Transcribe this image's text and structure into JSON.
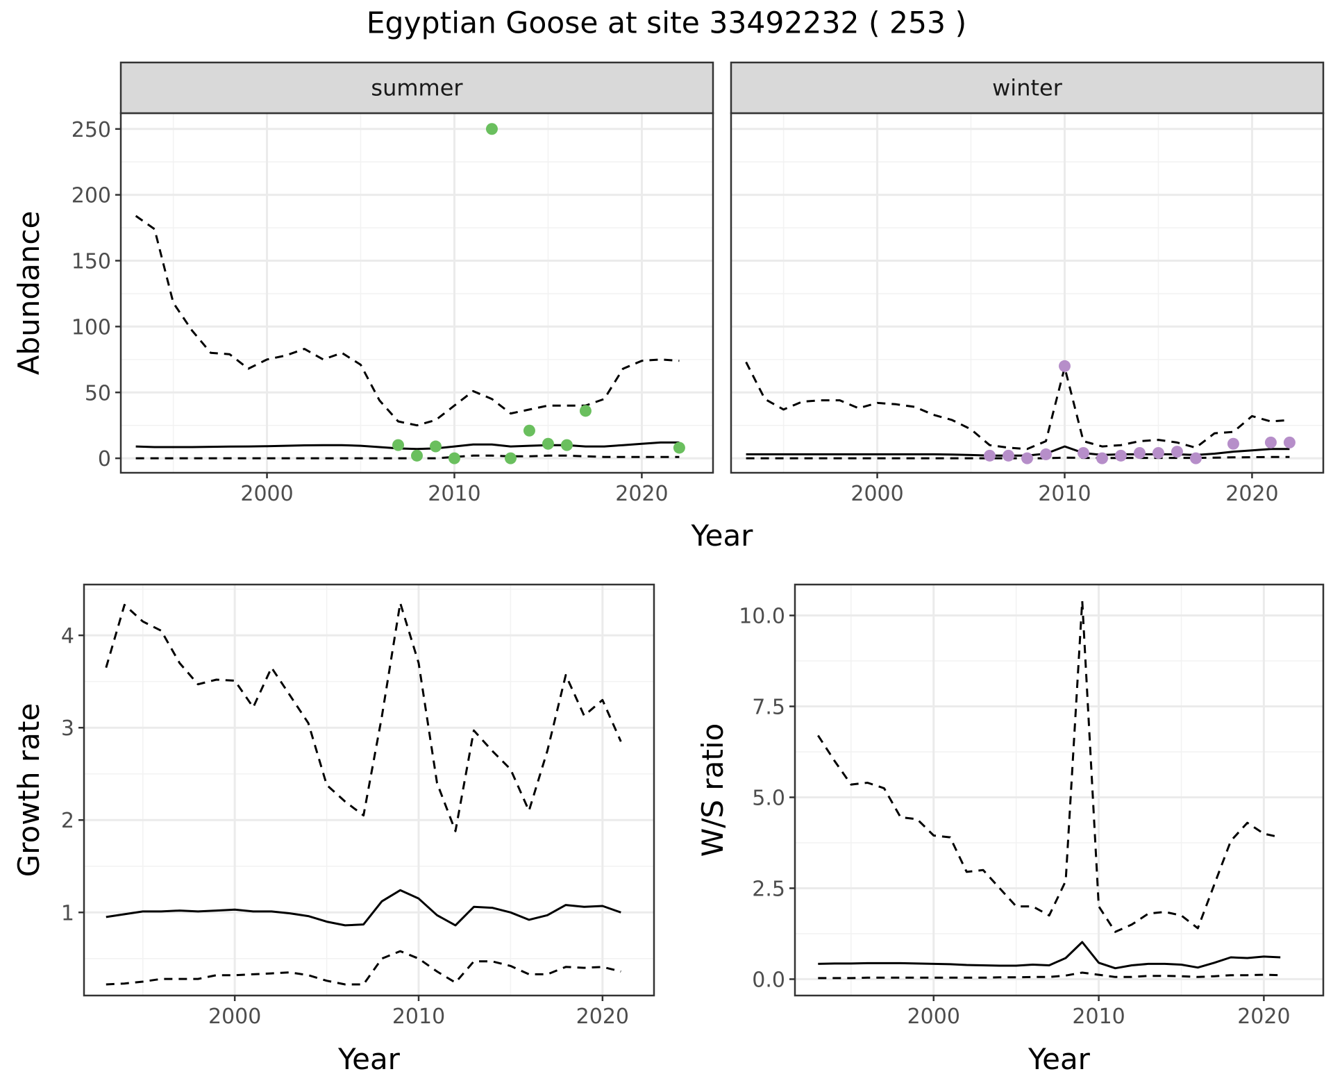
{
  "title": "Egyptian Goose at site 33492232 ( 253 )",
  "colors": {
    "summer_points": "#6abf5e",
    "winter_points": "#b68ec9",
    "strip_bg": "#d9d9d9",
    "grid": "#ebebeb",
    "line": "#000000"
  },
  "chart_data": [
    {
      "type": "line",
      "panel": "summer",
      "ylabel": "Abundance",
      "xlim": [
        1992.2,
        2023.8
      ],
      "ylim": [
        -11,
        262
      ],
      "xticks": [
        2000,
        2010,
        2020
      ],
      "yticks": [
        0,
        50,
        100,
        150,
        200,
        250
      ],
      "grid": true,
      "x": [
        1993,
        1994,
        1995,
        1996,
        1997,
        1998,
        1999,
        2000,
        2001,
        2002,
        2003,
        2004,
        2005,
        2006,
        2007,
        2008,
        2009,
        2010,
        2011,
        2012,
        2013,
        2014,
        2015,
        2016,
        2017,
        2018,
        2019,
        2020,
        2021,
        2022
      ],
      "series": [
        {
          "style": "dashed",
          "values": [
            184,
            174,
            118,
            97,
            80,
            79,
            68,
            75,
            78,
            83,
            75,
            80,
            71,
            44,
            28,
            25,
            29,
            40,
            51,
            45,
            34,
            37,
            40,
            40,
            40,
            45,
            68,
            74,
            75,
            74
          ]
        },
        {
          "style": "solid",
          "values": [
            9,
            8.5,
            8.5,
            8.5,
            8.7,
            8.9,
            9,
            9.2,
            9.5,
            9.8,
            10,
            10,
            9.5,
            8.5,
            7.5,
            7,
            7.5,
            9,
            10.5,
            10.5,
            9,
            9.5,
            10,
            10,
            9,
            9,
            10,
            11,
            12,
            12
          ]
        },
        {
          "style": "dashed",
          "values": [
            0,
            0,
            0,
            0,
            0,
            0,
            0,
            0,
            0,
            0,
            0,
            0,
            0,
            0,
            0,
            0,
            0,
            1,
            2,
            2,
            1.5,
            1.5,
            2,
            2,
            1.5,
            1,
            1,
            1,
            1,
            1
          ]
        }
      ],
      "points": {
        "x": [
          2007,
          2008,
          2009,
          2010,
          2012,
          2013,
          2014,
          2015,
          2016,
          2017,
          2022
        ],
        "y": [
          10,
          2,
          9,
          0,
          250,
          0,
          21,
          11,
          10,
          36,
          8
        ]
      }
    },
    {
      "type": "line",
      "panel": "winter",
      "ylabel": "",
      "xlim": [
        1992.2,
        2023.8
      ],
      "ylim": [
        -11,
        262
      ],
      "xticks": [
        2000,
        2010,
        2020
      ],
      "yticks": [],
      "grid": true,
      "x": [
        1993,
        1994,
        1995,
        1996,
        1997,
        1998,
        1999,
        2000,
        2001,
        2002,
        2003,
        2004,
        2005,
        2006,
        2007,
        2008,
        2009,
        2010,
        2011,
        2012,
        2013,
        2014,
        2015,
        2016,
        2017,
        2018,
        2019,
        2020,
        2021,
        2022
      ],
      "series": [
        {
          "style": "dashed",
          "values": [
            73,
            45,
            37,
            43,
            44,
            44,
            38,
            42,
            41,
            39,
            33,
            29,
            22,
            10,
            8,
            7,
            13,
            69,
            13,
            9,
            10,
            13,
            14,
            12,
            8,
            19,
            20,
            32,
            28,
            29
          ]
        },
        {
          "style": "solid",
          "values": [
            3,
            3,
            3,
            3,
            3,
            3,
            3,
            3,
            3,
            3,
            3,
            2.8,
            2.5,
            2,
            2,
            2,
            3.5,
            9,
            4,
            2.5,
            3,
            3,
            3,
            3,
            2.5,
            3.5,
            5,
            6,
            7,
            7
          ]
        },
        {
          "style": "dashed",
          "values": [
            0,
            0,
            0,
            0,
            0,
            0,
            0,
            0,
            0,
            0,
            0,
            0,
            0,
            0,
            0,
            0,
            0,
            0.5,
            0.3,
            0.2,
            0.2,
            0.3,
            0.3,
            0.3,
            0.2,
            0.5,
            0.7,
            0.8,
            1,
            1
          ]
        }
      ],
      "points": {
        "x": [
          2006,
          2007,
          2008,
          2009,
          2010,
          2011,
          2012,
          2013,
          2014,
          2015,
          2016,
          2017,
          2019,
          2021,
          2022
        ],
        "y": [
          2,
          2,
          0,
          3,
          70,
          4,
          0,
          2,
          4,
          4,
          5,
          0,
          11,
          12,
          12
        ]
      }
    },
    {
      "type": "line",
      "panel": "growth",
      "ylabel": "Growth rate",
      "xlabel": "Year",
      "xlim": [
        1991.8,
        2022.8
      ],
      "ylim": [
        0.1,
        4.55
      ],
      "xticks": [
        2000,
        2010,
        2020
      ],
      "yticks": [
        1,
        2,
        3,
        4
      ],
      "grid": true,
      "x": [
        1993,
        1994,
        1995,
        1996,
        1997,
        1998,
        1999,
        2000,
        2001,
        2002,
        2003,
        2004,
        2005,
        2006,
        2007,
        2008,
        2009,
        2010,
        2011,
        2012,
        2013,
        2014,
        2015,
        2016,
        2017,
        2018,
        2019,
        2020,
        2021
      ],
      "series": [
        {
          "style": "dashed",
          "values": [
            3.65,
            4.33,
            4.15,
            4.05,
            3.7,
            3.47,
            3.52,
            3.51,
            3.22,
            3.65,
            3.35,
            3.05,
            2.38,
            2.2,
            2.05,
            3.12,
            4.35,
            3.7,
            2.4,
            1.88,
            2.97,
            2.75,
            2.55,
            2.1,
            2.75,
            3.57,
            3.13,
            3.3,
            2.85
          ]
        },
        {
          "style": "solid",
          "values": [
            0.95,
            0.98,
            1.01,
            1.01,
            1.02,
            1.01,
            1.02,
            1.03,
            1.01,
            1.01,
            0.99,
            0.96,
            0.9,
            0.86,
            0.87,
            1.12,
            1.24,
            1.15,
            0.97,
            0.86,
            1.06,
            1.05,
            1.0,
            0.92,
            0.97,
            1.08,
            1.06,
            1.07,
            1.0
          ]
        },
        {
          "style": "dashed",
          "values": [
            0.22,
            0.23,
            0.25,
            0.28,
            0.28,
            0.28,
            0.32,
            0.32,
            0.33,
            0.34,
            0.35,
            0.32,
            0.26,
            0.22,
            0.22,
            0.5,
            0.58,
            0.5,
            0.36,
            0.24,
            0.47,
            0.47,
            0.42,
            0.33,
            0.33,
            0.41,
            0.4,
            0.41,
            0.36
          ]
        }
      ]
    },
    {
      "type": "line",
      "panel": "ratio",
      "ylabel": "W/S ratio",
      "xlabel": "Year",
      "xlim": [
        1991.6,
        2023.6
      ],
      "ylim": [
        -0.45,
        10.85
      ],
      "xticks": [
        2000,
        2010,
        2020
      ],
      "yticks": [
        0.0,
        2.5,
        5.0,
        7.5,
        10.0
      ],
      "ytick_labels": [
        "0.0",
        "2.5",
        "5.0",
        "7.5",
        "10.0"
      ],
      "grid": true,
      "x": [
        1993,
        1994,
        1995,
        1996,
        1997,
        1998,
        1999,
        2000,
        2001,
        2002,
        2003,
        2004,
        2005,
        2006,
        2007,
        2008,
        2009,
        2010,
        2011,
        2012,
        2013,
        2014,
        2015,
        2016,
        2017,
        2018,
        2019,
        2020,
        2021
      ],
      "series": [
        {
          "style": "dashed",
          "values": [
            6.7,
            6.0,
            5.35,
            5.4,
            5.25,
            4.45,
            4.4,
            3.95,
            3.9,
            2.95,
            3.0,
            2.5,
            2.0,
            2.0,
            1.75,
            2.7,
            10.4,
            2.0,
            1.3,
            1.5,
            1.8,
            1.85,
            1.75,
            1.4,
            2.6,
            3.8,
            4.3,
            4.0,
            3.9
          ]
        },
        {
          "style": "solid",
          "values": [
            0.42,
            0.43,
            0.43,
            0.44,
            0.44,
            0.44,
            0.43,
            0.42,
            0.41,
            0.39,
            0.38,
            0.37,
            0.37,
            0.4,
            0.38,
            0.58,
            1.02,
            0.45,
            0.3,
            0.38,
            0.42,
            0.42,
            0.4,
            0.32,
            0.45,
            0.6,
            0.58,
            0.62,
            0.6
          ]
        },
        {
          "style": "dashed",
          "values": [
            0.03,
            0.03,
            0.03,
            0.04,
            0.04,
            0.04,
            0.04,
            0.04,
            0.04,
            0.04,
            0.04,
            0.05,
            0.05,
            0.06,
            0.06,
            0.1,
            0.18,
            0.12,
            0.06,
            0.06,
            0.09,
            0.09,
            0.08,
            0.06,
            0.08,
            0.11,
            0.11,
            0.12,
            0.11
          ]
        }
      ]
    }
  ],
  "facet_xlabel": "Year"
}
